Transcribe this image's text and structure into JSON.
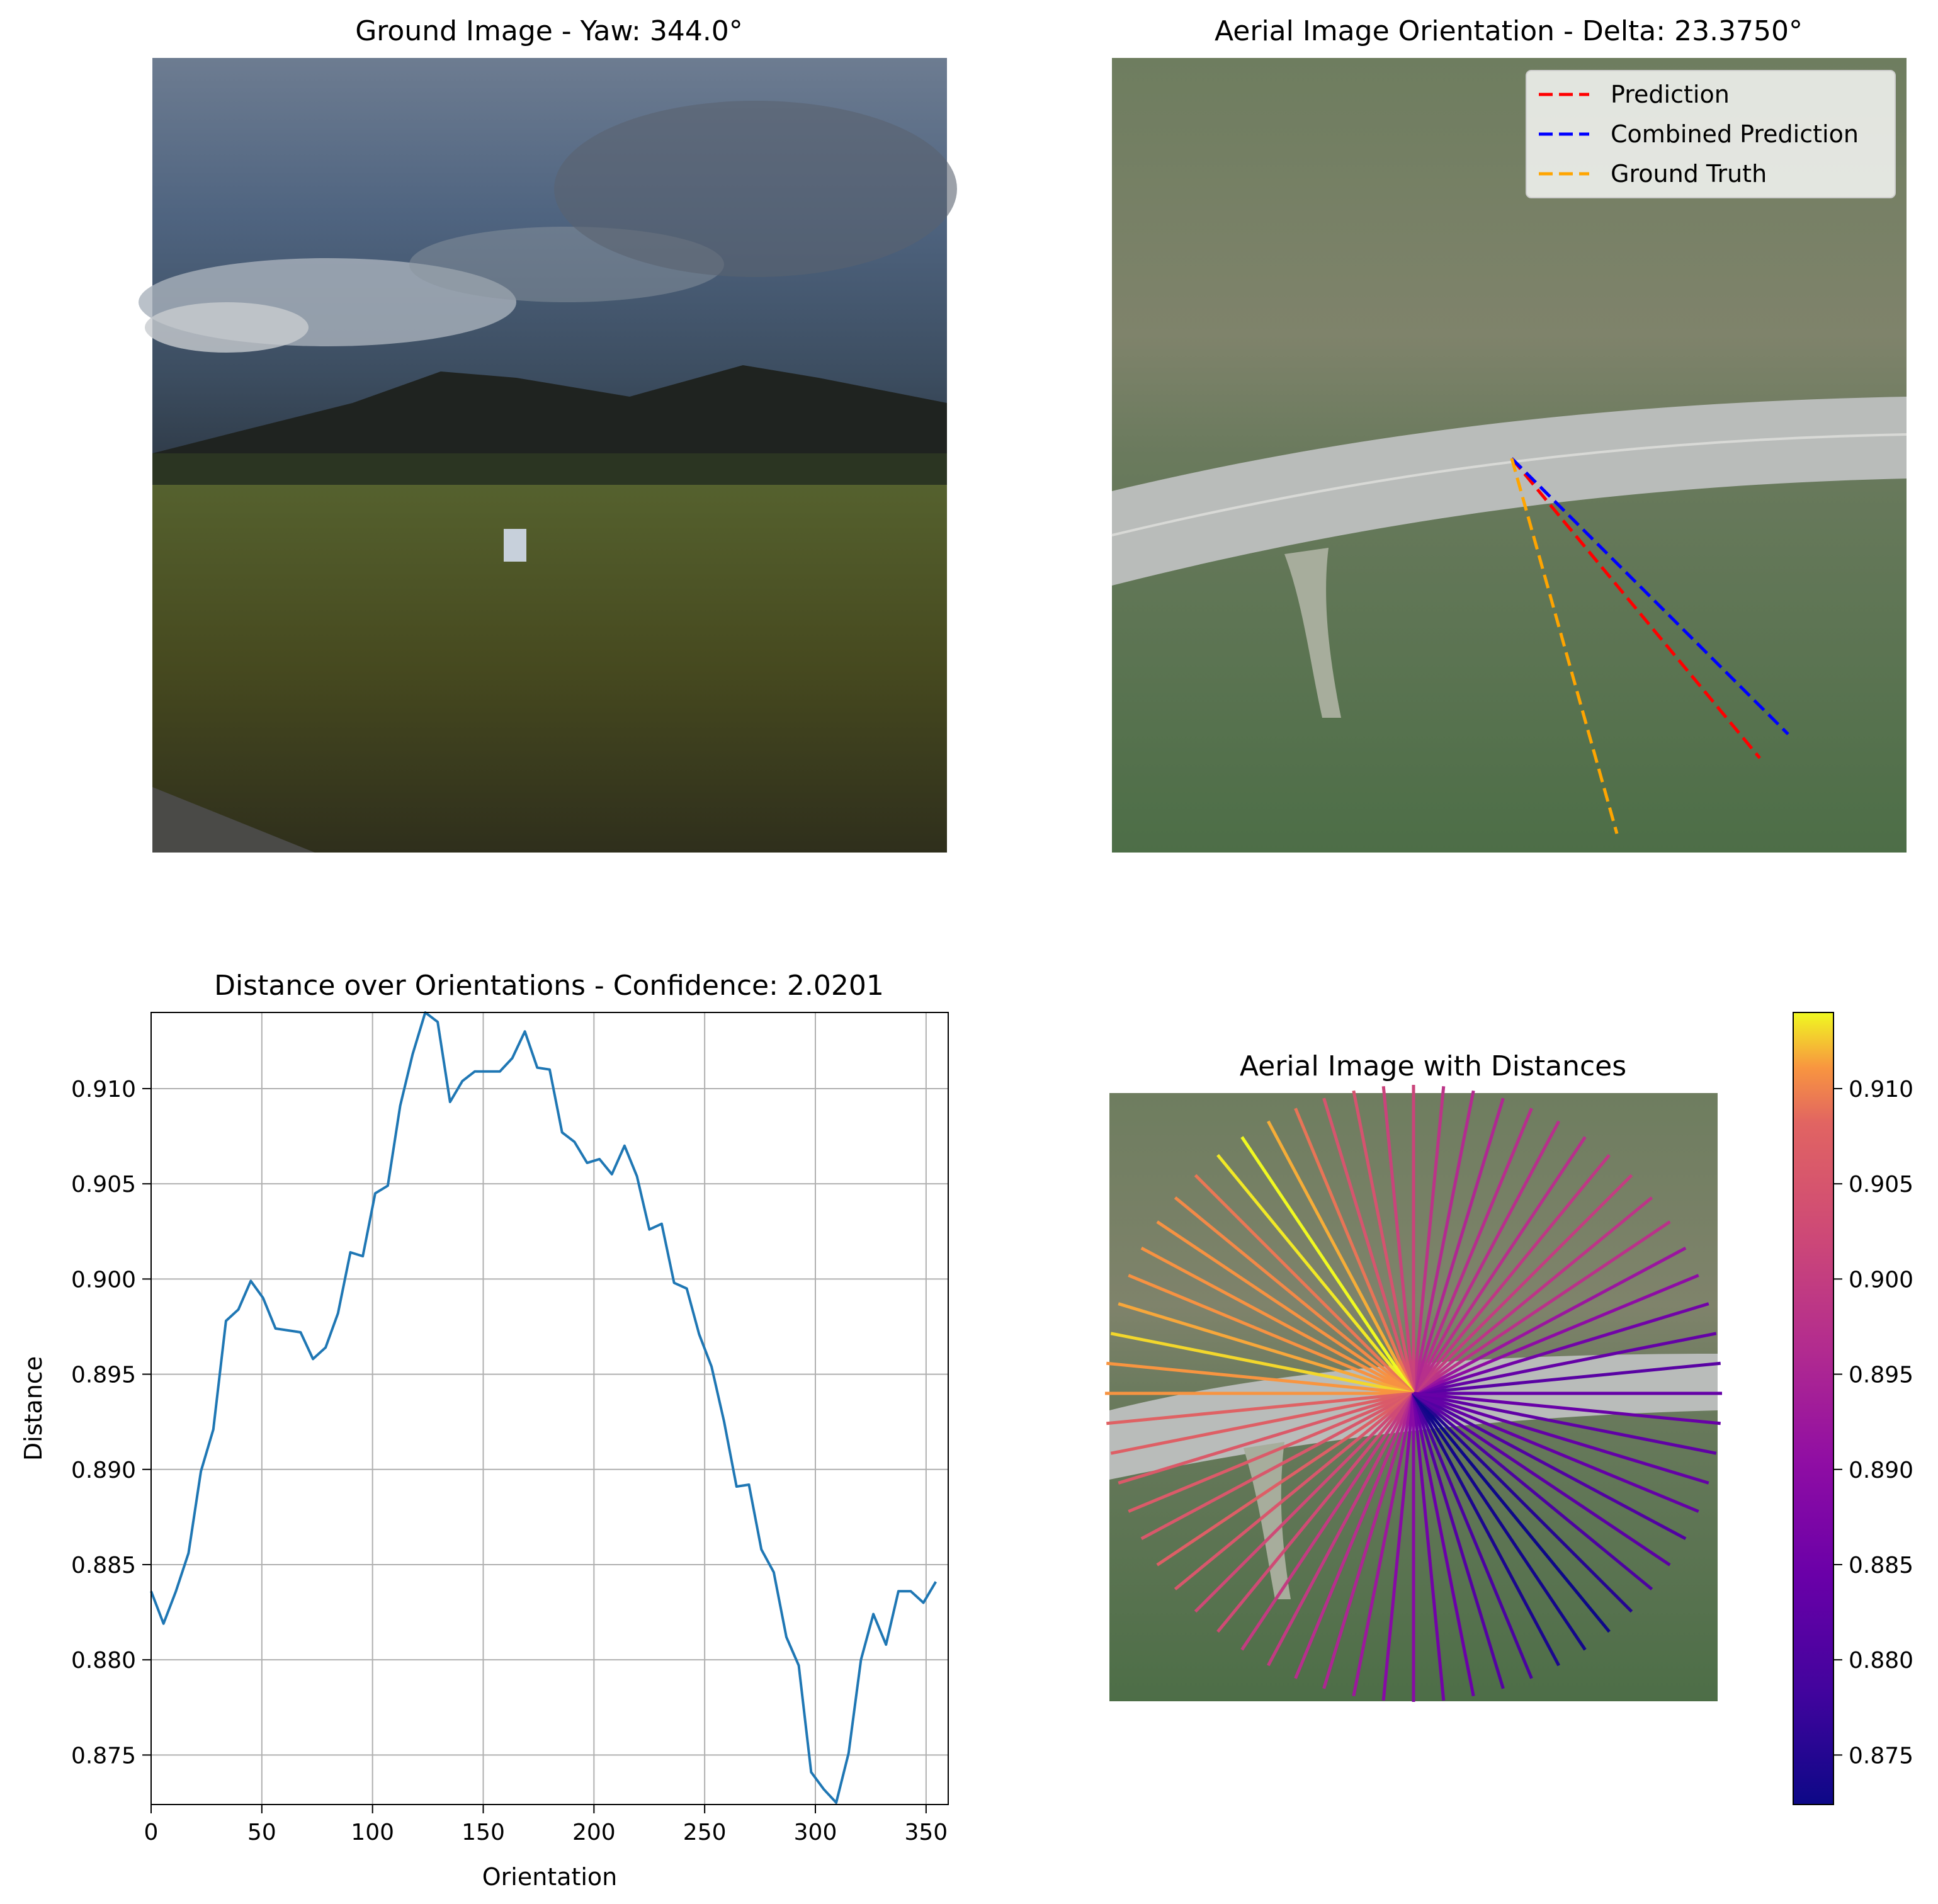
{
  "panels": {
    "ground": {
      "title": "Ground Image - Yaw: 344.0°"
    },
    "aerial": {
      "title": "Aerial Image Orientation - Delta: 23.3750°",
      "legend": [
        {
          "label": "Prediction",
          "color": "#ff0000"
        },
        {
          "label": "Combined Prediction",
          "color": "#0000ff"
        },
        {
          "label": "Ground Truth",
          "color": "#ffa500"
        }
      ]
    },
    "rays": {
      "title": "Aerial Image with Distances"
    }
  },
  "chart_data": [
    {
      "type": "line",
      "title": "Distance over Orientations - Confidence: 2.0201",
      "xlabel": "Orientation",
      "ylabel": "Distance",
      "xlim": [
        0,
        360
      ],
      "ylim": [
        0.8724,
        0.914
      ],
      "xticks": [
        0,
        50,
        100,
        150,
        200,
        250,
        300,
        350
      ],
      "yticks": [
        0.875,
        0.88,
        0.885,
        0.89,
        0.895,
        0.9,
        0.905,
        0.91
      ],
      "grid": true,
      "line_color": "#1f77b4",
      "series": [
        {
          "x": [
            0,
            5.6,
            11.2,
            16.9,
            22.5,
            28.1,
            33.8,
            39.4,
            45,
            50.6,
            56.2,
            61.9,
            67.5,
            73.1,
            78.8,
            84.4,
            90,
            95.6,
            101.2,
            106.9,
            112.5,
            118.1,
            123.8,
            129.4,
            135,
            140.6,
            146.2,
            151.9,
            157.5,
            163.1,
            168.8,
            174.4,
            180,
            185.6,
            191.2,
            196.9,
            202.5,
            208.1,
            213.8,
            219.4,
            225,
            230.6,
            236.2,
            241.9,
            247.5,
            253.1,
            258.8,
            264.4,
            270,
            275.6,
            281.2,
            286.9,
            292.5,
            298.1,
            303.8,
            309.4,
            315,
            320.6,
            326.2,
            331.9,
            337.5,
            343.1,
            348.8,
            354.4
          ],
          "values": [
            0.8836,
            0.8819,
            0.8836,
            0.8856,
            0.8899,
            0.8921,
            0.8978,
            0.8984,
            0.8999,
            0.899,
            0.8974,
            0.8973,
            0.8972,
            0.8958,
            0.8964,
            0.8982,
            0.9014,
            0.9012,
            0.9045,
            0.9049,
            0.9091,
            0.9118,
            0.914,
            0.9135,
            0.9093,
            0.9104,
            0.9109,
            0.9109,
            0.9109,
            0.9116,
            0.913,
            0.9111,
            0.911,
            0.9077,
            0.9072,
            0.9061,
            0.9063,
            0.9055,
            0.907,
            0.9054,
            0.9026,
            0.9029,
            0.8998,
            0.8995,
            0.8971,
            0.8954,
            0.8925,
            0.8891,
            0.8892,
            0.8858,
            0.8846,
            0.8812,
            0.8797,
            0.8741,
            0.8732,
            0.8725,
            0.8751,
            0.88,
            0.8824,
            0.8808,
            0.8836,
            0.8836,
            0.883,
            0.8841
          ]
        }
      ]
    },
    {
      "type": "colorbar",
      "colormap": "plasma",
      "ylim": [
        0.8724,
        0.914
      ],
      "yticks": [
        0.875,
        0.88,
        0.885,
        0.89,
        0.895,
        0.9,
        0.905,
        0.91
      ]
    }
  ]
}
